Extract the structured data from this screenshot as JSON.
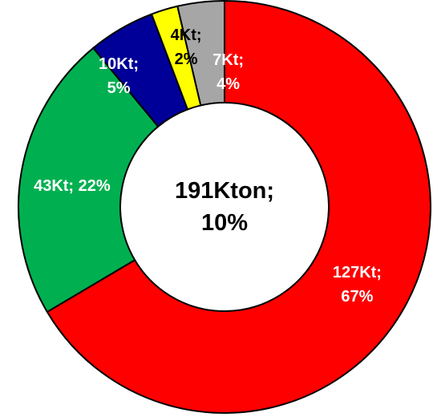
{
  "chart_data": {
    "type": "donut",
    "center_label": "191Kton;\n10%",
    "categories": [
      null,
      null,
      null,
      null,
      null
    ],
    "values": [
      127,
      43,
      10,
      4,
      7
    ],
    "value_labels": [
      "127Kt;\n67%",
      "43Kt; 22%",
      "10Kt;\n5%",
      "4Kt;\n2%",
      "7Kt;\n4%"
    ],
    "colors": [
      "#ff0000",
      "#00b050",
      "#000099",
      "#ffff00",
      "#a6a6a6"
    ],
    "label_colors": [
      "#ffffff",
      "#ffffff",
      "#ffffff",
      "#000000",
      "#ffffff"
    ]
  }
}
